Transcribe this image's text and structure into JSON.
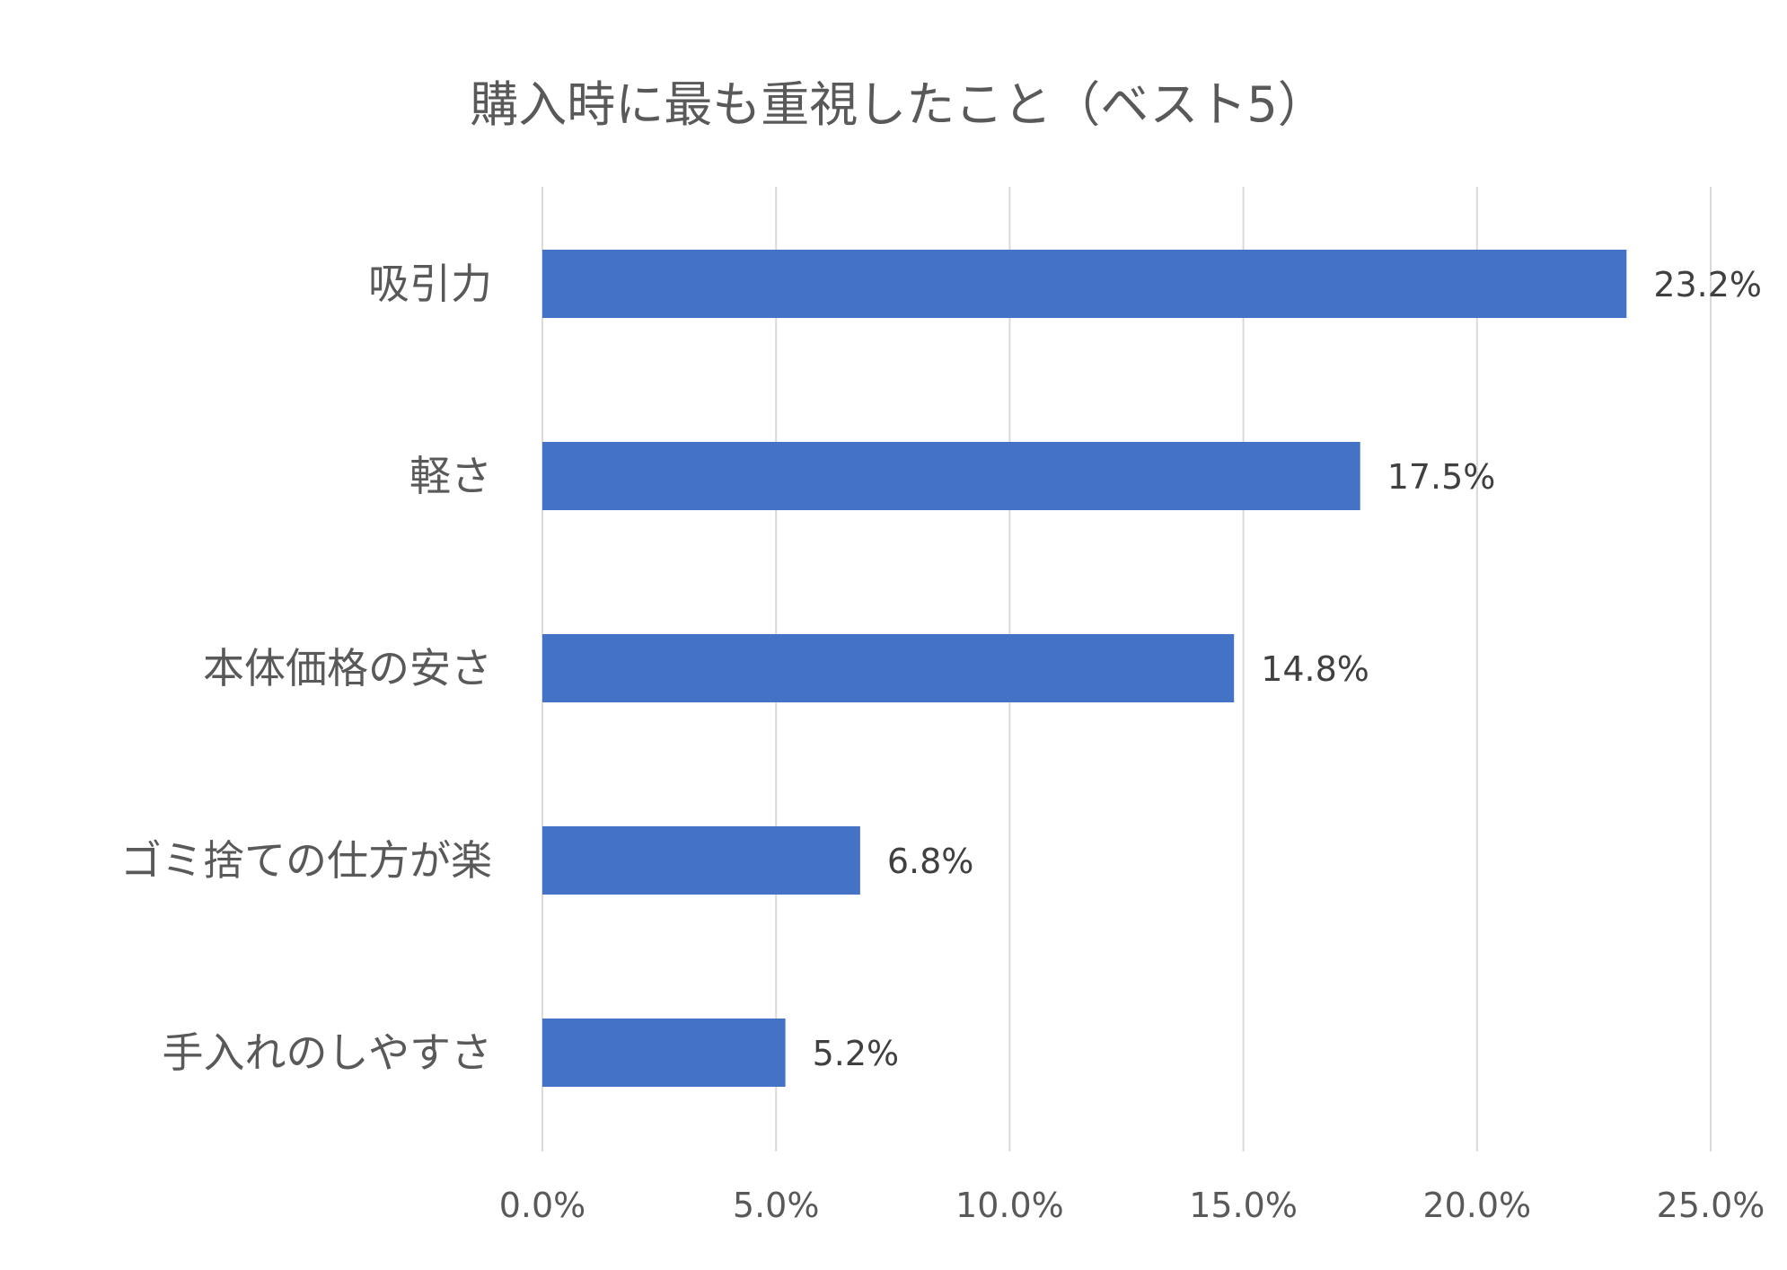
{
  "chart_data": {
    "type": "bar",
    "orientation": "horizontal",
    "title": "購入時に最も重視したこと（ベスト5）",
    "categories": [
      "吸引力",
      "軽さ",
      "本体価格の安さ",
      "ゴミ捨ての仕方が楽",
      "手入れのしやすさ"
    ],
    "values": [
      23.2,
      17.5,
      14.8,
      6.8,
      5.2
    ],
    "value_labels": [
      "23.2%",
      "17.5%",
      "14.8%",
      "6.8%",
      "5.2%"
    ],
    "xlim": [
      0,
      25
    ],
    "x_ticks": [
      0,
      5,
      10,
      15,
      20,
      25
    ],
    "x_tick_labels": [
      "0.0%",
      "5.0%",
      "10.0%",
      "15.0%",
      "20.0%",
      "25.0%"
    ],
    "grid": true,
    "legend": "none",
    "bar_color": "#4472C4"
  }
}
